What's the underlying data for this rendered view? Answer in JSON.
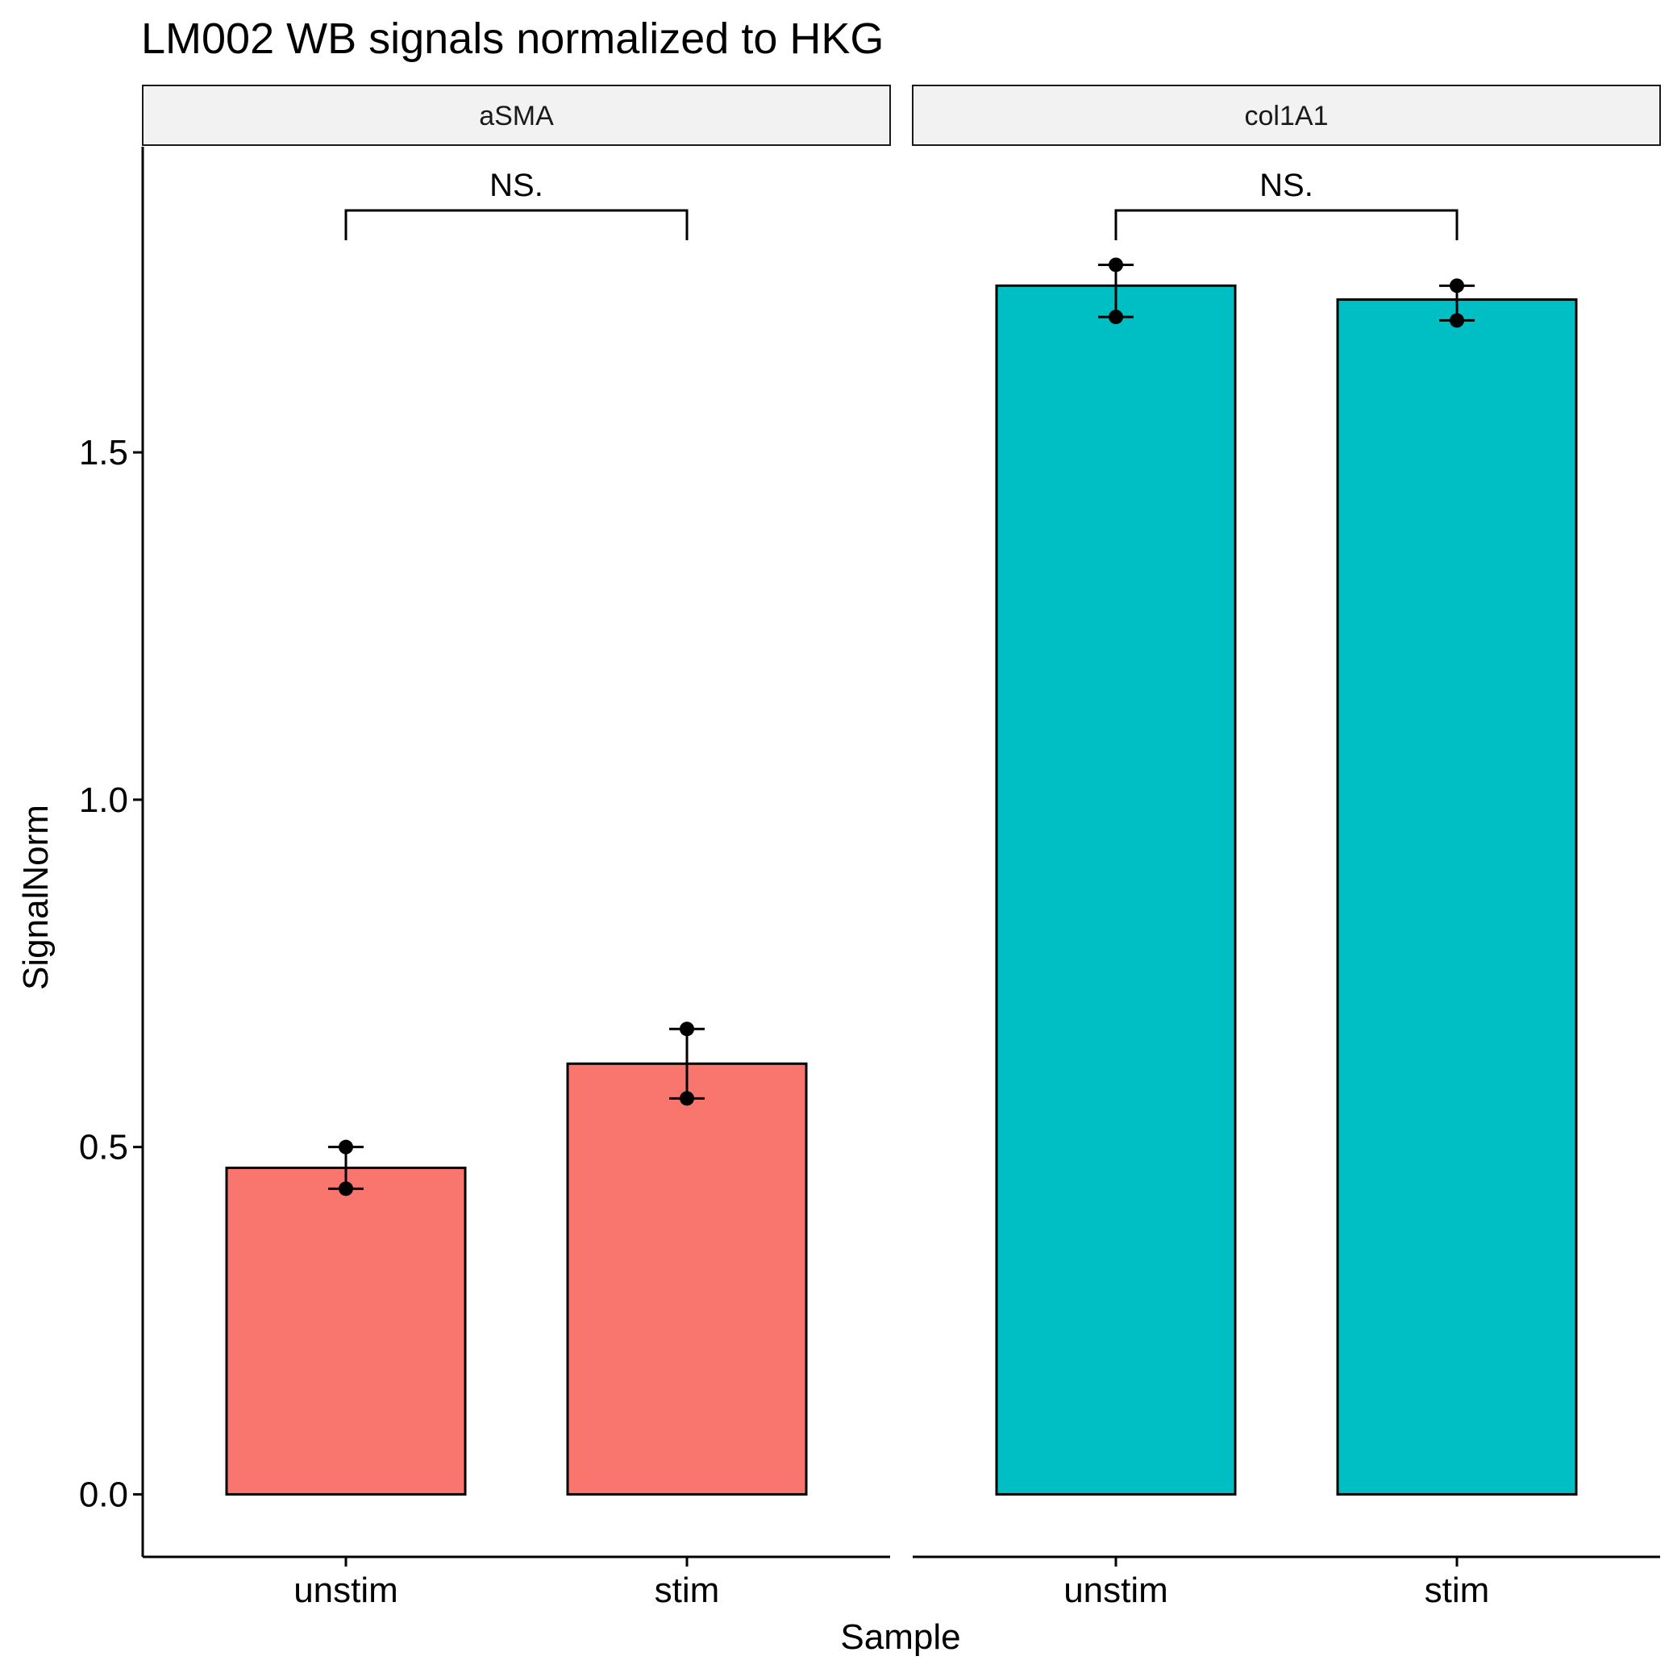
{
  "chart_data": {
    "type": "bar",
    "title": "LM002 WB signals normalized to HKG",
    "xlabel": "Sample",
    "ylabel": "SignalNorm",
    "ylim": [
      -0.09,
      1.94
    ],
    "yticks": [
      "0.0",
      "0.5",
      "1.0",
      "1.5"
    ],
    "yticks_values": [
      0,
      0.5,
      1.0,
      1.5
    ],
    "categories": [
      "unstim",
      "stim"
    ],
    "grid": false,
    "legend": "none",
    "panels": [
      {
        "label": "aSMA",
        "color": "#F8766D",
        "values": [
          0.47,
          0.62
        ],
        "points": [
          [
            0.5,
            0.44
          ],
          [
            0.67,
            0.57
          ]
        ],
        "error_bars": [
          [
            0.44,
            0.5
          ],
          [
            0.57,
            0.67
          ]
        ],
        "significance": "NS."
      },
      {
        "label": "col1A1",
        "color": "#00BFC4",
        "values": [
          1.74,
          1.72
        ],
        "points": [
          [
            1.77,
            1.695
          ],
          [
            1.74,
            1.69
          ]
        ],
        "error_bars": [
          [
            1.695,
            1.77
          ],
          [
            1.69,
            1.74
          ]
        ],
        "significance": "NS."
      }
    ]
  }
}
